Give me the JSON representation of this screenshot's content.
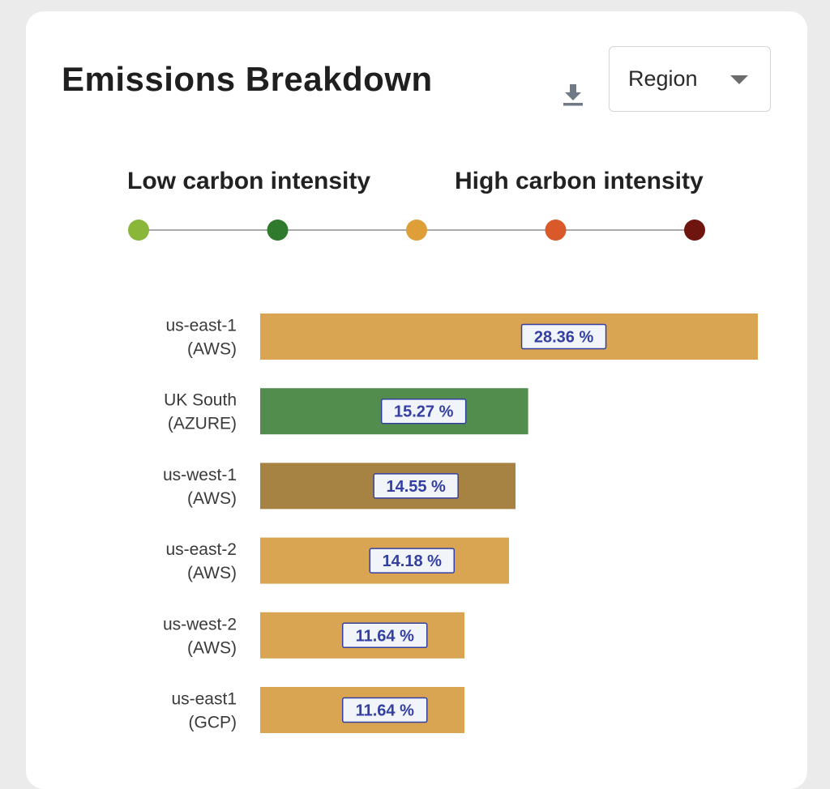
{
  "card": {
    "title": "Emissions Breakdown",
    "download_icon": "download-icon",
    "group_by": {
      "selected": "Region",
      "icon": "chevron-down-icon"
    }
  },
  "legend": {
    "low_label": "Low carbon intensity",
    "high_label": "High carbon intensity",
    "scale_colors": [
      "#8ab63a",
      "#2f7a2c",
      "#de9f39",
      "#d9592a",
      "#6e150f"
    ]
  },
  "chart_data": {
    "type": "bar",
    "orientation": "horizontal",
    "categories": [
      [
        "us-east-1",
        "(AWS)"
      ],
      [
        "UK South",
        "(AZURE)"
      ],
      [
        "us-west-1",
        "(AWS)"
      ],
      [
        "us-east-2",
        "(AWS)"
      ],
      [
        "us-west-2",
        "(AWS)"
      ],
      [
        "us-east1",
        "(GCP)"
      ]
    ],
    "values": [
      28.36,
      15.27,
      14.55,
      14.18,
      11.64,
      11.64
    ],
    "value_labels": [
      "28.36 %",
      "15.27 %",
      "14.55 %",
      "14.18 %",
      "11.64 %",
      "11.64 %"
    ],
    "colors": [
      "#d9a553",
      "#538d4d",
      "#a78343",
      "#d9a553",
      "#d9a553",
      "#d9a553"
    ],
    "label_colors": {
      "text": "#3340a2",
      "box_border": "#3340a2",
      "box_fill": "#f1f4f8"
    },
    "xlim": [
      0,
      28.36
    ],
    "grid": false,
    "legend": "none"
  }
}
